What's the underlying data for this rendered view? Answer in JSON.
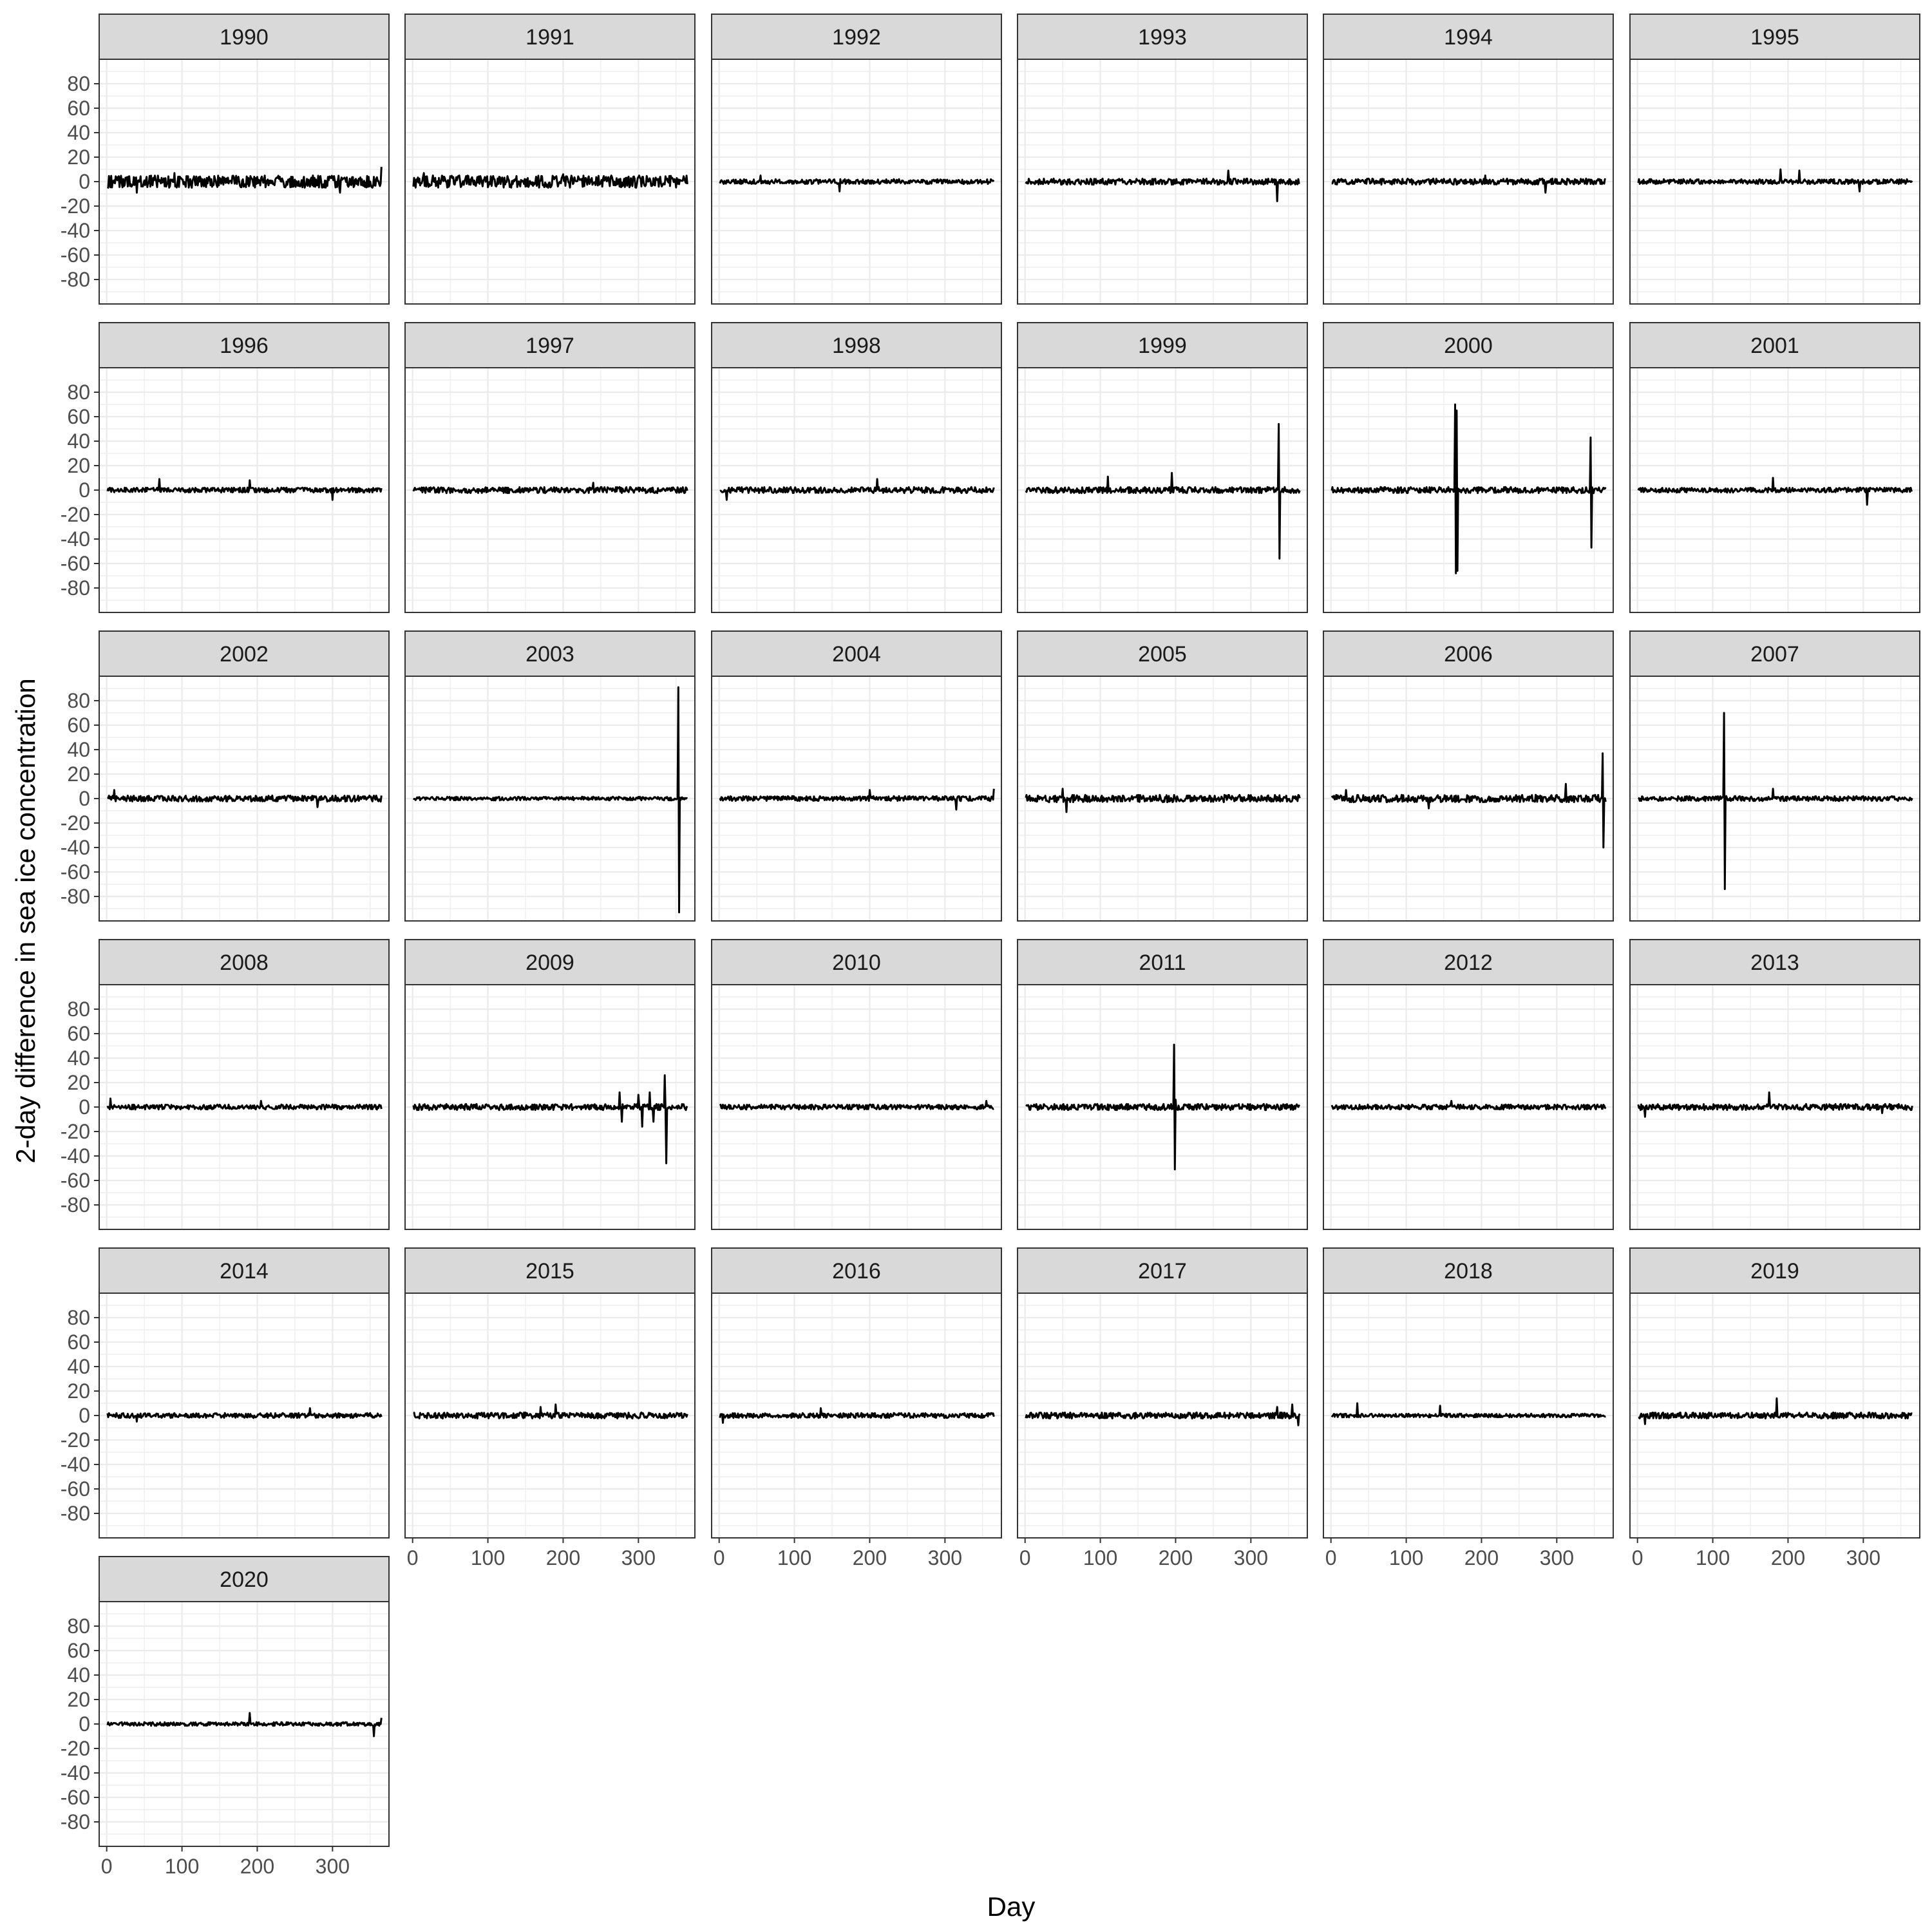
{
  "chart_data": {
    "type": "line",
    "facet_by": "year",
    "xlabel": "Day",
    "ylabel": "2-day difference in sea ice concentration",
    "xlim": [
      -10,
      375
    ],
    "ylim": [
      -100,
      100
    ],
    "x_ticks": [
      0,
      100,
      200,
      300
    ],
    "y_ticks": [
      80,
      60,
      40,
      20,
      0,
      -20,
      -40,
      -60,
      -80
    ],
    "grid": true,
    "line_color": "#000000",
    "strip_fill": "#d9d9d9",
    "panel_border": "#333333",
    "grid_color": "#ebebeb",
    "panels": [
      {
        "label": "1990",
        "baseline_amplitude": 5,
        "spikes": [
          [
            365,
            12
          ],
          [
            40,
            -9
          ],
          [
            90,
            7
          ],
          [
            310,
            -9
          ]
        ]
      },
      {
        "label": "1991",
        "baseline_amplitude": 5,
        "spikes": [
          [
            15,
            7
          ],
          [
            200,
            6
          ]
        ]
      },
      {
        "label": "1992",
        "baseline_amplitude": 2,
        "spikes": [
          [
            55,
            5
          ],
          [
            160,
            -8
          ]
        ]
      },
      {
        "label": "1993",
        "baseline_amplitude": 2.5,
        "spikes": [
          [
            270,
            9
          ],
          [
            335,
            -16
          ]
        ]
      },
      {
        "label": "1994",
        "baseline_amplitude": 2.5,
        "spikes": [
          [
            205,
            5
          ],
          [
            285,
            -9
          ]
        ]
      },
      {
        "label": "1995",
        "baseline_amplitude": 2,
        "spikes": [
          [
            190,
            10
          ],
          [
            215,
            9
          ],
          [
            295,
            -8
          ]
        ]
      },
      {
        "label": "1996",
        "baseline_amplitude": 2,
        "spikes": [
          [
            70,
            9
          ],
          [
            190,
            8
          ],
          [
            300,
            -8
          ]
        ]
      },
      {
        "label": "1997",
        "baseline_amplitude": 2.5,
        "spikes": [
          [
            240,
            6
          ]
        ]
      },
      {
        "label": "1998",
        "baseline_amplitude": 2.5,
        "spikes": [
          [
            10,
            -8
          ],
          [
            210,
            9
          ]
        ]
      },
      {
        "label": "1999",
        "baseline_amplitude": 2.5,
        "spikes": [
          [
            110,
            11
          ],
          [
            195,
            14
          ],
          [
            337,
            54
          ],
          [
            338,
            -56
          ]
        ]
      },
      {
        "label": "2000",
        "baseline_amplitude": 2.5,
        "spikes": [
          [
            165,
            70
          ],
          [
            166,
            -68
          ],
          [
            167,
            65
          ],
          [
            168,
            -66
          ],
          [
            345,
            43
          ],
          [
            346,
            -47
          ]
        ]
      },
      {
        "label": "2001",
        "baseline_amplitude": 2,
        "spikes": [
          [
            180,
            10
          ],
          [
            305,
            -12
          ]
        ]
      },
      {
        "label": "2002",
        "baseline_amplitude": 2.5,
        "spikes": [
          [
            10,
            7
          ],
          [
            280,
            -7
          ]
        ]
      },
      {
        "label": "2003",
        "baseline_amplitude": 1.5,
        "spikes": [
          [
            353,
            91
          ],
          [
            354,
            -93
          ]
        ]
      },
      {
        "label": "2004",
        "baseline_amplitude": 2,
        "spikes": [
          [
            200,
            7
          ],
          [
            315,
            -9
          ],
          [
            365,
            8
          ]
        ]
      },
      {
        "label": "2005",
        "baseline_amplitude": 3,
        "spikes": [
          [
            55,
            -11
          ],
          [
            50,
            8
          ]
        ]
      },
      {
        "label": "2006",
        "baseline_amplitude": 3,
        "spikes": [
          [
            20,
            7
          ],
          [
            130,
            -8
          ],
          [
            312,
            12
          ],
          [
            361,
            37
          ],
          [
            362,
            -40
          ]
        ]
      },
      {
        "label": "2007",
        "baseline_amplitude": 2,
        "spikes": [
          [
            115,
            70
          ],
          [
            116,
            -74
          ],
          [
            180,
            8
          ]
        ]
      },
      {
        "label": "2008",
        "baseline_amplitude": 2,
        "spikes": [
          [
            5,
            7
          ],
          [
            205,
            5
          ]
        ]
      },
      {
        "label": "2009",
        "baseline_amplitude": 2.5,
        "spikes": [
          [
            275,
            12
          ],
          [
            278,
            -12
          ],
          [
            300,
            10
          ],
          [
            305,
            -16
          ],
          [
            315,
            12
          ],
          [
            320,
            -12
          ],
          [
            335,
            26
          ],
          [
            337,
            -46
          ]
        ]
      },
      {
        "label": "2010",
        "baseline_amplitude": 2,
        "spikes": [
          [
            355,
            5
          ]
        ]
      },
      {
        "label": "2011",
        "baseline_amplitude": 2.5,
        "spikes": [
          [
            198,
            51
          ],
          [
            199,
            -51
          ],
          [
            200,
            6
          ]
        ]
      },
      {
        "label": "2012",
        "baseline_amplitude": 2,
        "spikes": [
          [
            160,
            5
          ]
        ]
      },
      {
        "label": "2013",
        "baseline_amplitude": 2.5,
        "spikes": [
          [
            175,
            12
          ],
          [
            10,
            -8
          ],
          [
            325,
            -5
          ]
        ]
      },
      {
        "label": "2014",
        "baseline_amplitude": 2,
        "spikes": [
          [
            270,
            6
          ],
          [
            40,
            -5
          ]
        ]
      },
      {
        "label": "2015",
        "baseline_amplitude": 2.5,
        "spikes": [
          [
            190,
            9
          ],
          [
            170,
            7
          ]
        ]
      },
      {
        "label": "2016",
        "baseline_amplitude": 2,
        "spikes": [
          [
            135,
            6
          ],
          [
            5,
            -6
          ]
        ]
      },
      {
        "label": "2017",
        "baseline_amplitude": 2.5,
        "spikes": [
          [
            355,
            9
          ],
          [
            363,
            -8
          ],
          [
            335,
            7
          ]
        ]
      },
      {
        "label": "2018",
        "baseline_amplitude": 1.5,
        "spikes": [
          [
            35,
            10
          ],
          [
            145,
            8
          ]
        ]
      },
      {
        "label": "2019",
        "baseline_amplitude": 2.5,
        "spikes": [
          [
            185,
            14
          ],
          [
            10,
            -7
          ]
        ]
      },
      {
        "label": "2020",
        "baseline_amplitude": 1.5,
        "spikes": [
          [
            190,
            9
          ],
          [
            355,
            -10
          ],
          [
            365,
            5
          ]
        ]
      }
    ]
  }
}
